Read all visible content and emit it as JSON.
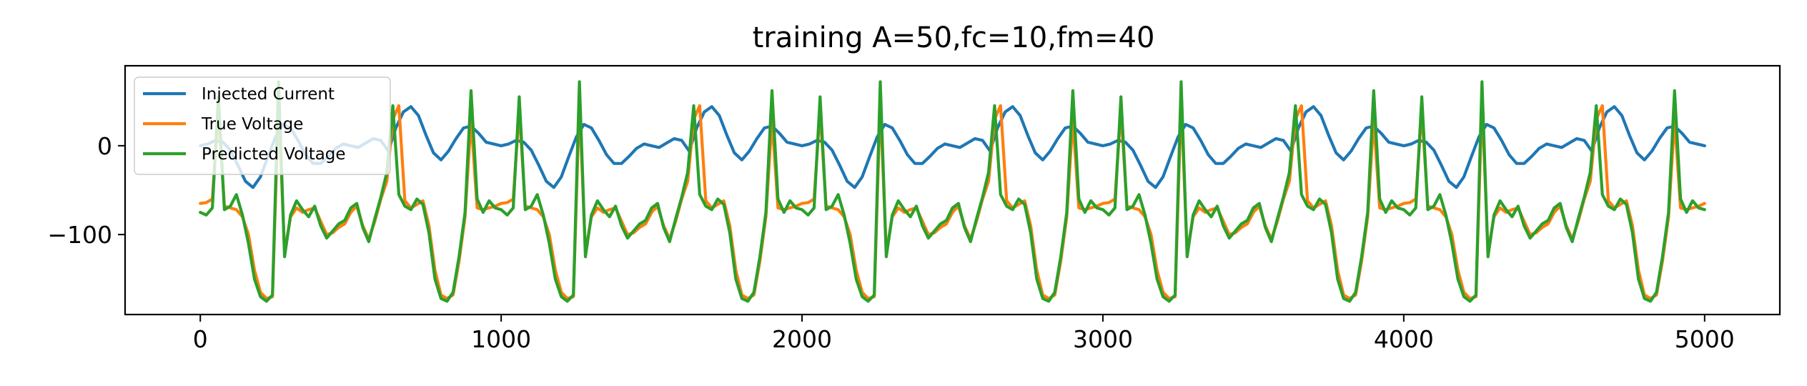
{
  "chart_data": {
    "type": "line",
    "title": "training A=50,fc=10,fm=40",
    "xlabel": "",
    "ylabel": "",
    "xlim": [
      -250,
      5250
    ],
    "ylim": [
      -190,
      90
    ],
    "xticks": [
      0,
      1000,
      2000,
      3000,
      4000,
      5000
    ],
    "yticks": [
      -100,
      0
    ],
    "grid": false,
    "legend_position": "top-left",
    "series": [
      {
        "name": "Injected Current",
        "color": "#1f77b4",
        "x": [
          0,
          25,
          50,
          75,
          100,
          125,
          150,
          175,
          200,
          225,
          250,
          275,
          300,
          325,
          350,
          375,
          400,
          425,
          450,
          475,
          500,
          525,
          550,
          575,
          600,
          625,
          650,
          675,
          700,
          725,
          750,
          775,
          800,
          825,
          850,
          875,
          900,
          925,
          950,
          975,
          1000
        ],
        "period": 1000,
        "values": [
          0,
          2,
          6,
          4,
          -5,
          -22,
          -40,
          -47,
          -35,
          -12,
          10,
          24,
          20,
          6,
          -10,
          -20,
          -20,
          -12,
          -3,
          2,
          0,
          -2,
          3,
          8,
          6,
          -6,
          20,
          38,
          44,
          34,
          12,
          -8,
          -16,
          -6,
          8,
          20,
          22,
          14,
          4,
          2,
          0
        ]
      },
      {
        "name": "True Voltage",
        "color": "#ff7f0e",
        "x": [
          0,
          20,
          40,
          60,
          80,
          100,
          120,
          140,
          160,
          180,
          200,
          220,
          240,
          260,
          280,
          300,
          320,
          340,
          360,
          380,
          400,
          420,
          440,
          460,
          480,
          500,
          520,
          540,
          560,
          580,
          600,
          620,
          640,
          660,
          680,
          700,
          720,
          740,
          760,
          780,
          800,
          820,
          840,
          860,
          880,
          900,
          920,
          940,
          960,
          980,
          1000
        ],
        "period": 1000,
        "values": [
          -65,
          -64,
          -60,
          40,
          -68,
          -70,
          -72,
          -80,
          -100,
          -140,
          -165,
          -172,
          -170,
          50,
          -120,
          -80,
          -70,
          -75,
          -72,
          -70,
          -85,
          -100,
          -98,
          -92,
          -88,
          -75,
          -68,
          -90,
          -105,
          -85,
          -60,
          -40,
          30,
          45,
          -62,
          -70,
          -66,
          -62,
          -90,
          -140,
          -168,
          -172,
          -168,
          -130,
          -80,
          30,
          -70,
          -72,
          -70,
          -68,
          -65
        ]
      },
      {
        "name": "Predicted Voltage",
        "color": "#2ca02c",
        "x": [
          0,
          20,
          40,
          60,
          80,
          100,
          120,
          140,
          160,
          180,
          200,
          220,
          240,
          260,
          280,
          300,
          320,
          340,
          360,
          380,
          400,
          420,
          440,
          460,
          480,
          500,
          520,
          540,
          560,
          580,
          600,
          620,
          640,
          660,
          680,
          700,
          720,
          740,
          760,
          780,
          800,
          820,
          840,
          860,
          880,
          900,
          920,
          940,
          960,
          980,
          1000
        ],
        "period": 1000,
        "values": [
          -75,
          -78,
          -70,
          55,
          -72,
          -68,
          -55,
          -78,
          -110,
          -150,
          -170,
          -175,
          -168,
          72,
          -125,
          -78,
          -62,
          -72,
          -80,
          -68,
          -90,
          -104,
          -96,
          -88,
          -84,
          -70,
          -65,
          -92,
          -108,
          -82,
          -58,
          -30,
          45,
          -55,
          -68,
          -72,
          -60,
          -66,
          -98,
          -150,
          -172,
          -175,
          -165,
          -125,
          -75,
          62,
          -60,
          -75,
          -62,
          -70,
          -72
        ]
      }
    ]
  }
}
